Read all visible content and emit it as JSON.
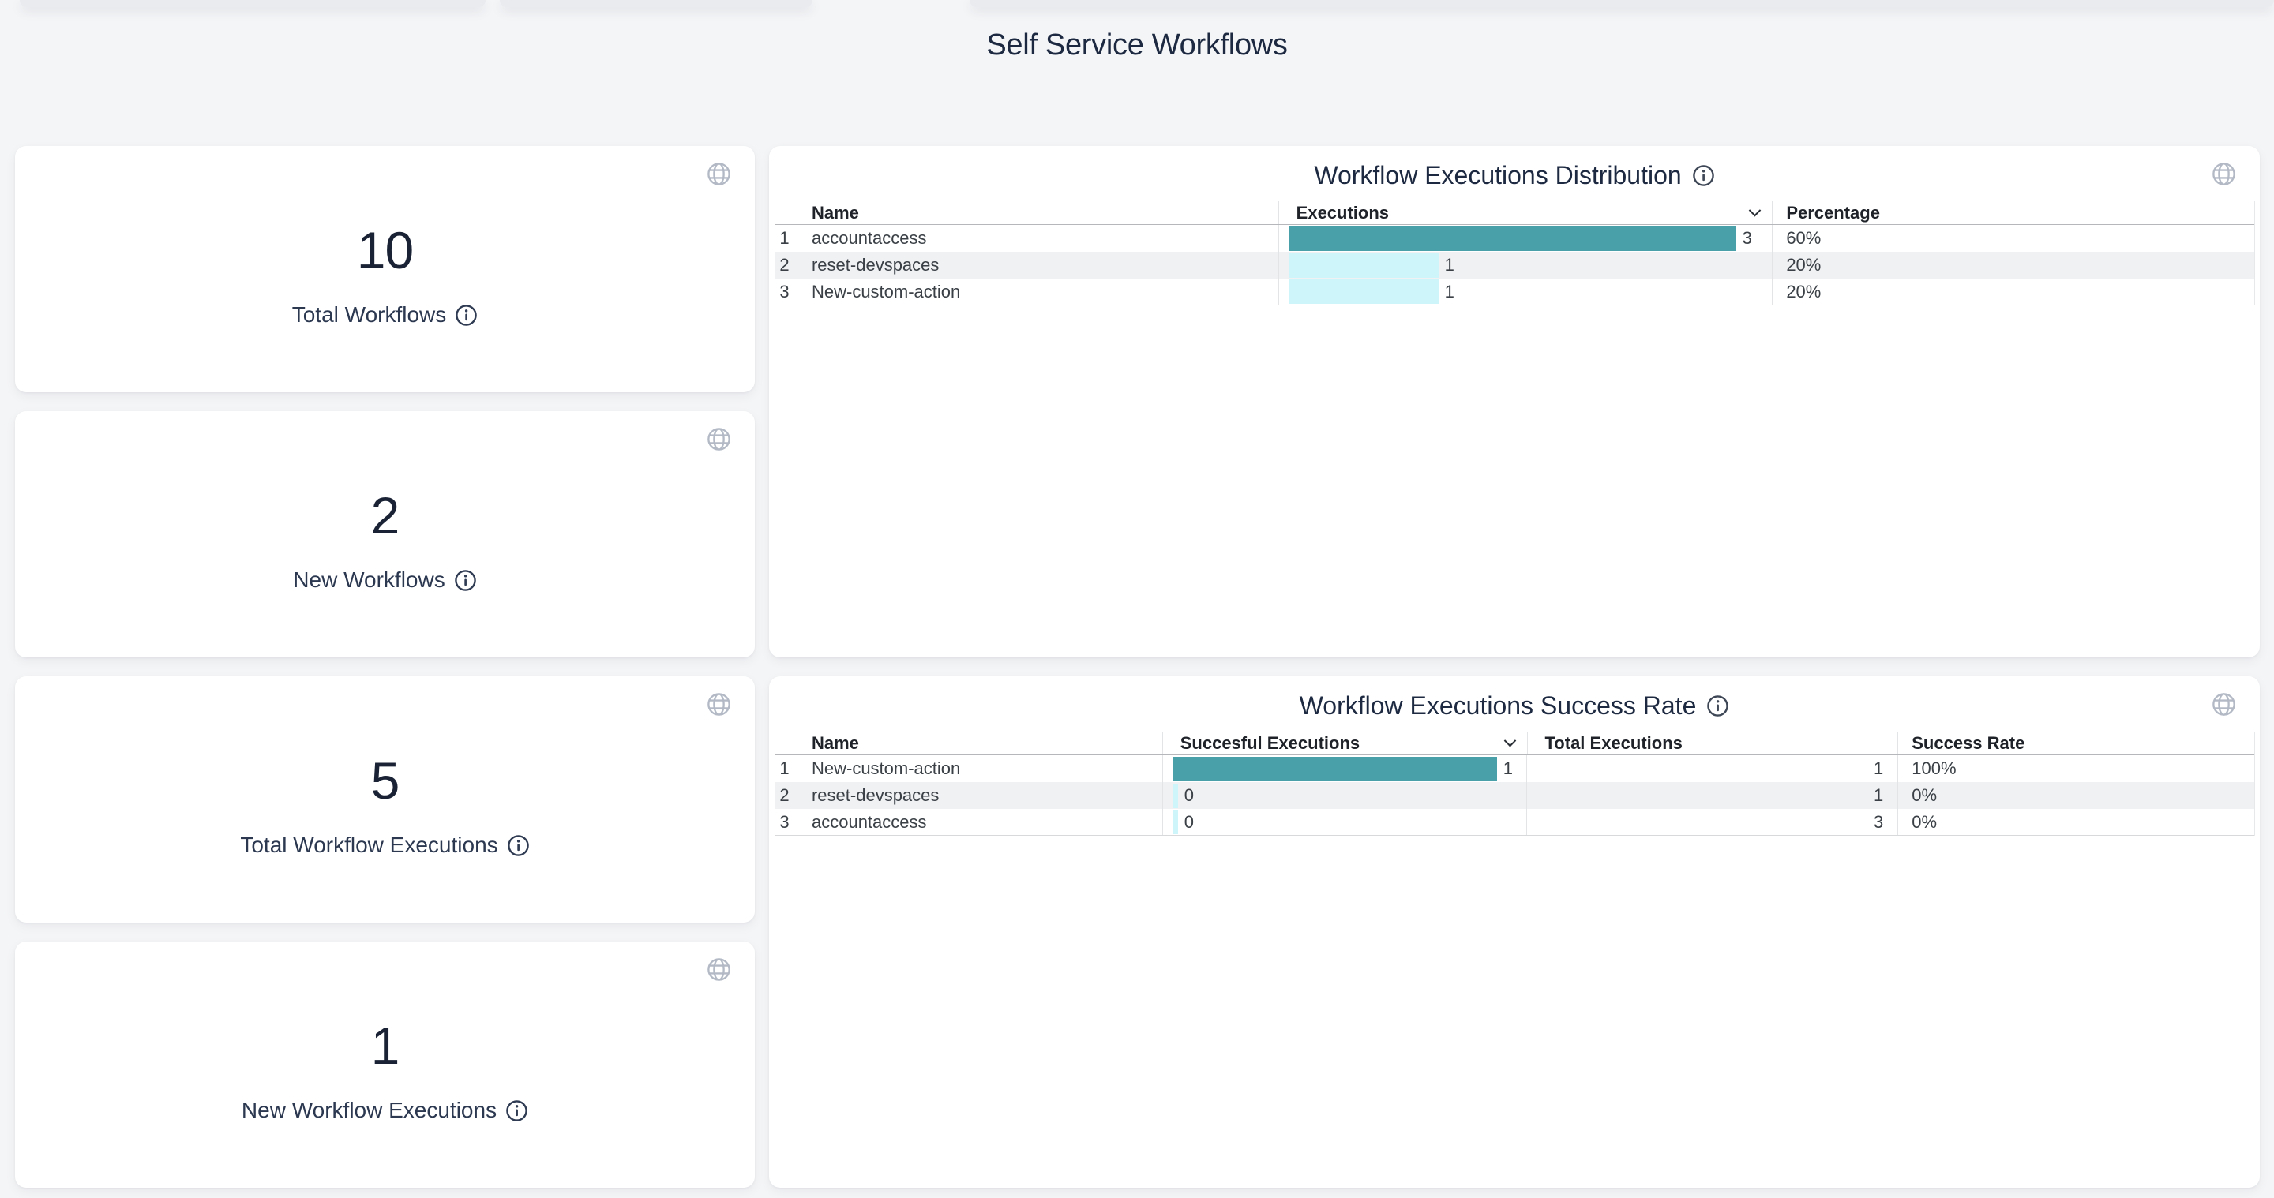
{
  "page": {
    "title": "Self Service Workflows"
  },
  "colors": {
    "accent_teal": "#49A0A8",
    "bar_light_cyan": "#CDF5FA",
    "title_navy": "#1C2940",
    "page_background": "#F4F5F7",
    "row_stripe": "#F0F1F3",
    "globe_gray": "#B3BAC6"
  },
  "icons": {
    "card_corner": "globe-icon",
    "label_suffix": "info-icon",
    "sort_indicator": "chevron-down-icon"
  },
  "stat_cards": [
    {
      "value": "10",
      "label": "Total Workflows"
    },
    {
      "value": "2",
      "label": "New Workflows"
    },
    {
      "value": "5",
      "label": "Total Workflow Executions"
    },
    {
      "value": "1",
      "label": "New Workflow Executions"
    }
  ],
  "distribution_table": {
    "title": "Workflow Executions Distribution",
    "columns": {
      "name": "Name",
      "executions": "Executions",
      "percentage": "Percentage"
    },
    "sorted_column": "Executions",
    "max_executions": 3,
    "rows": [
      {
        "num": "1",
        "name": "accountaccess",
        "executions": 3,
        "percentage": "60%"
      },
      {
        "num": "2",
        "name": "reset-devspaces",
        "executions": 1,
        "percentage": "20%"
      },
      {
        "num": "3",
        "name": "New-custom-action",
        "executions": 1,
        "percentage": "20%"
      }
    ]
  },
  "success_table": {
    "title": "Workflow Executions Success Rate",
    "columns": {
      "name": "Name",
      "successful": "Succesful Executions",
      "total": "Total Executions",
      "rate": "Success Rate"
    },
    "sorted_column": "Succesful Executions",
    "max_successful": 1,
    "rows": [
      {
        "num": "1",
        "name": "New-custom-action",
        "successful": 1,
        "total": "1",
        "rate": "100%"
      },
      {
        "num": "2",
        "name": "reset-devspaces",
        "successful": 0,
        "total": "1",
        "rate": "0%"
      },
      {
        "num": "3",
        "name": "accountaccess",
        "successful": 0,
        "total": "3",
        "rate": "0%"
      }
    ]
  }
}
